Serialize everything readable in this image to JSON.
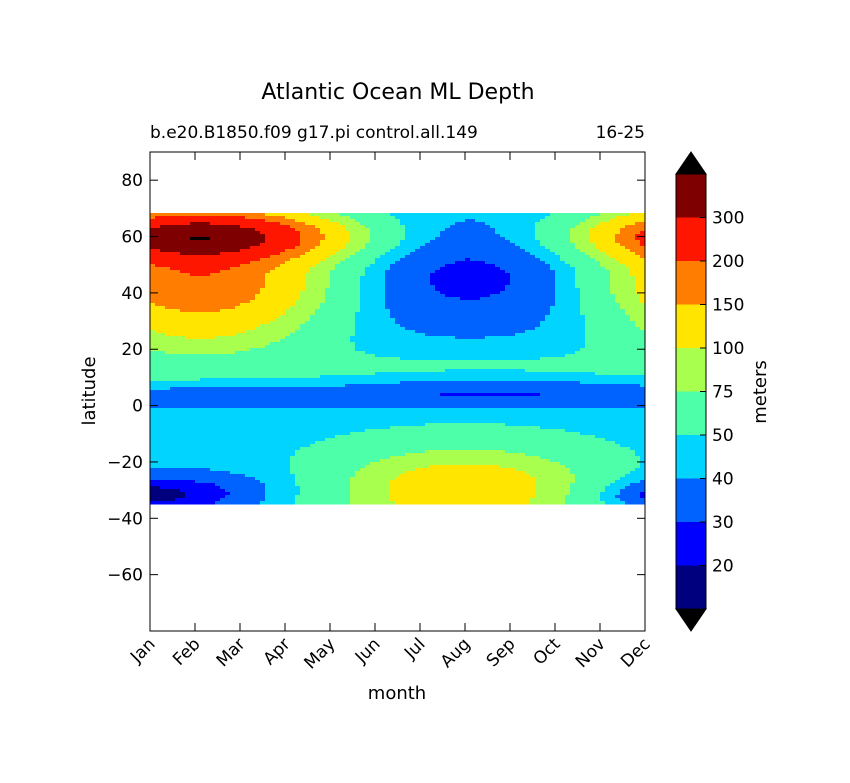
{
  "chart_data": {
    "type": "heatmap",
    "title": "Atlantic Ocean ML Depth",
    "subtitle_left": "b.e20.B1850.f09 g17.pi control.all.149",
    "subtitle_right": "16-25",
    "xlabel": "month",
    "ylabel": "latitude",
    "x_categories": [
      "Jan",
      "Feb",
      "Mar",
      "Apr",
      "May",
      "Jun",
      "Jul",
      "Aug",
      "Sep",
      "Oct",
      "Nov",
      "Dec"
    ],
    "ylim": [
      -80,
      90
    ],
    "yticks": [
      80,
      60,
      40,
      20,
      0,
      -20,
      -40,
      -60
    ],
    "data_extent_lat": [
      -34,
      68
    ],
    "colorbar": {
      "label": "meters",
      "extend": "both",
      "levels": [
        10,
        20,
        30,
        40,
        50,
        75,
        100,
        150,
        200,
        300,
        400
      ],
      "tick_labels": [
        "20",
        "30",
        "40",
        "50",
        "75",
        "100",
        "150",
        "200",
        "300"
      ],
      "colors": [
        "#00007f",
        "#0000ff",
        "#0063ff",
        "#00d4ff",
        "#4dffa9",
        "#a9ff4d",
        "#ffe500",
        "#ff7d00",
        "#ff1600",
        "#7f0000"
      ],
      "under_color": "#000000",
      "over_color": "#000000"
    }
  }
}
